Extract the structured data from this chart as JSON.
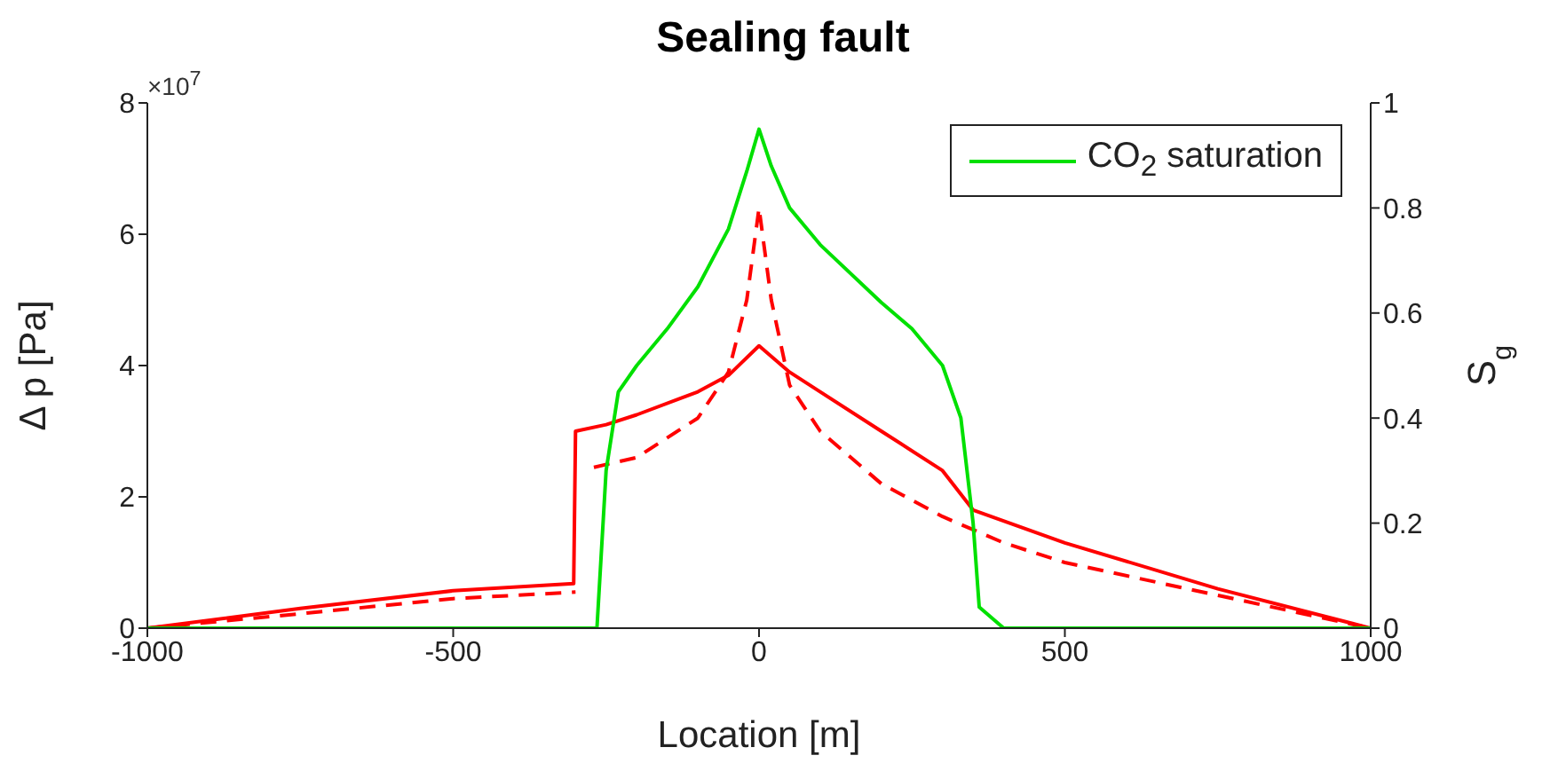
{
  "chart_data": {
    "type": "line",
    "title": "Sealing fault",
    "xlabel": "Location [m]",
    "ylabel": "Δ p [Pa]",
    "y2label": "S$_{g}$",
    "annotations": [
      "×10$^{7}$"
    ],
    "xlim": [
      -1000,
      1000
    ],
    "xticks": [
      -1000,
      -500,
      0,
      500,
      1000
    ],
    "ylim": [
      0,
      8
    ],
    "yticks": [
      0,
      2,
      4,
      6,
      8
    ],
    "y2lim": [
      0,
      1
    ],
    "y2ticks": [
      0,
      0.2,
      0.4,
      0.6,
      0.8,
      1
    ],
    "legend": "top right",
    "grid": false,
    "series": [
      {
        "color": "#ff0000",
        "line_style": "solid",
        "x": [
          -1000,
          -750,
          -500,
          -303,
          -300,
          -250,
          -200,
          -100,
          -50,
          0,
          50,
          100,
          200,
          300,
          350,
          500,
          750,
          1000
        ],
        "values": [
          0,
          0.3,
          0.57,
          0.68,
          3.0,
          3.1,
          3.25,
          3.6,
          3.85,
          4.3,
          3.9,
          3.6,
          3.0,
          2.4,
          1.8,
          1.3,
          0.6,
          0
        ]
      },
      {
        "color": "#ff0000",
        "line_style": "dashed",
        "x": [
          -1000,
          -750,
          -500,
          -300,
          -285,
          -270,
          -200,
          -100,
          -50,
          -20,
          0,
          20,
          50,
          100,
          200,
          300,
          400,
          500,
          750,
          1000
        ],
        "values": [
          0,
          0.22,
          0.45,
          0.55,
          null,
          2.45,
          2.6,
          3.2,
          3.9,
          5.0,
          6.4,
          5.0,
          3.7,
          3.0,
          2.2,
          1.7,
          1.3,
          1.0,
          0.5,
          0
        ]
      },
      {
        "name": "CO$_{2}$ saturation",
        "color": "#00e000",
        "line_style": "solid",
        "axis": "y2",
        "x": [
          -1000,
          -265,
          -250,
          -230,
          -200,
          -150,
          -100,
          -50,
          -20,
          0,
          20,
          50,
          100,
          200,
          250,
          300,
          330,
          350,
          360,
          400,
          1000
        ],
        "values": [
          0,
          0,
          0.3,
          0.45,
          0.5,
          0.57,
          0.65,
          0.76,
          0.87,
          0.95,
          0.88,
          0.8,
          0.73,
          0.62,
          0.57,
          0.5,
          0.4,
          0.2,
          0.04,
          0,
          0
        ]
      }
    ]
  }
}
